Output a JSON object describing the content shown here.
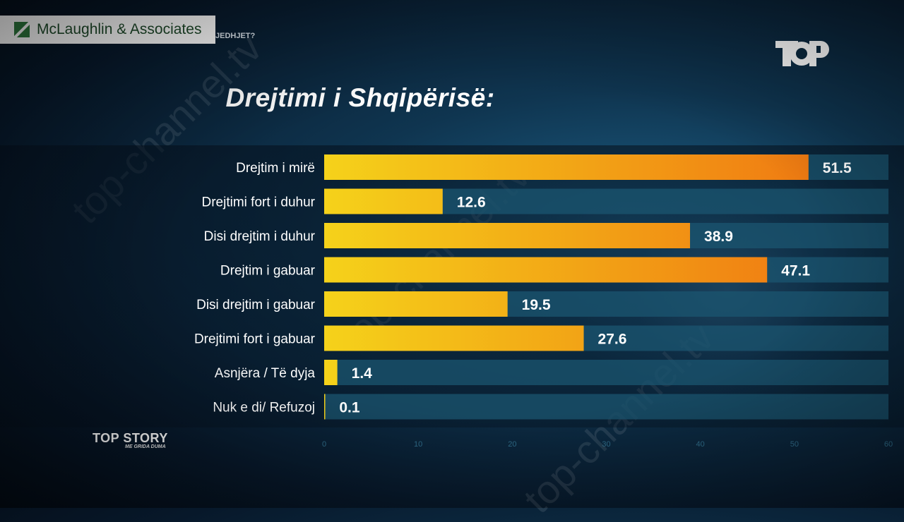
{
  "source": {
    "label": "McLaughlin & Associates"
  },
  "question_fragment": "JEDHJET?",
  "channel_logo": "TOP",
  "watermark": "top-channel.tv",
  "brand": {
    "main": "TOP STORY",
    "sub": "ME GRIDA DUMA"
  },
  "chart_data": {
    "type": "bar",
    "orientation": "horizontal",
    "title": "Drejtimi i Shqipërisë:",
    "categories": [
      "Drejtim i mirë",
      "Drejtimi fort i duhur",
      "Disi drejtim i duhur",
      "Drejtim i gabuar",
      "Disi drejtim i gabuar",
      "Drejtimi fort i gabuar",
      "Asnjëra / Të dyja",
      "Nuk e di/ Refuzoj"
    ],
    "values": [
      51.5,
      12.6,
      38.9,
      47.1,
      19.5,
      27.6,
      1.4,
      0.1
    ],
    "value_labels": [
      "51.5",
      "12.6",
      "38.9",
      "47.1",
      "19.5",
      "27.6",
      "1.4",
      "0.1"
    ],
    "xlim": [
      0,
      60
    ],
    "xticks": [
      0,
      10,
      20,
      30,
      40,
      50,
      60
    ],
    "colors": {
      "bar_start": "#f5d21a",
      "bar_end": "#f07a12",
      "track": "#1b5570",
      "label": "#ffffff",
      "tick": "#2f6b88"
    }
  }
}
